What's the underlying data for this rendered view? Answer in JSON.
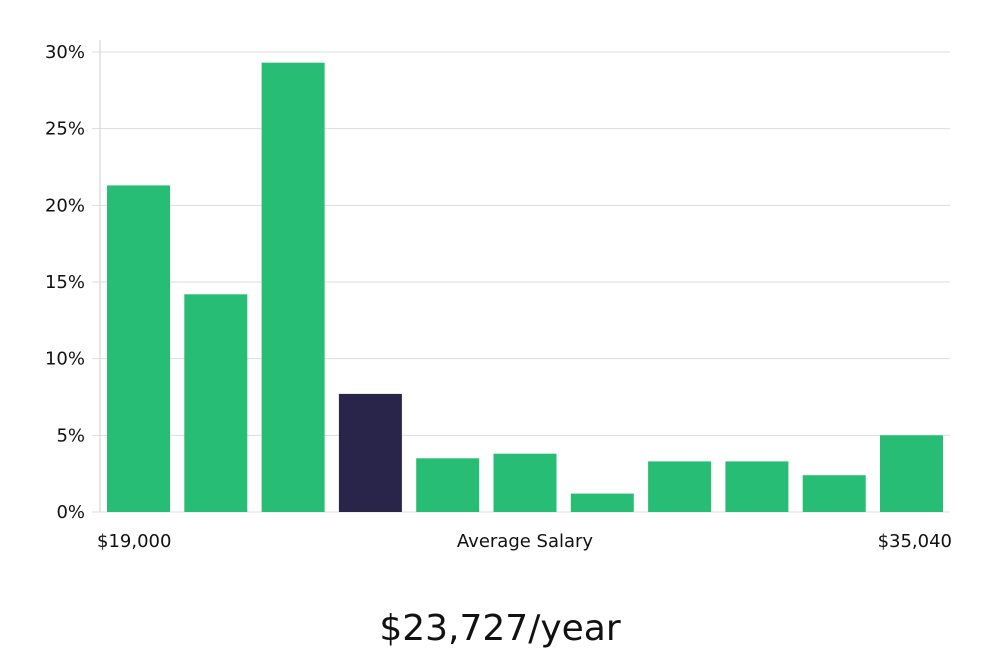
{
  "chart_data": {
    "type": "bar",
    "title": "",
    "xlabel": "Average Salary",
    "ylabel": "",
    "x_min_label": "$19,000",
    "x_max_label": "$35,040",
    "ylim": [
      0,
      31
    ],
    "yticks": [
      0,
      5,
      10,
      15,
      20,
      25,
      30
    ],
    "ytick_labels": [
      "0%",
      "5%",
      "10%",
      "15%",
      "20%",
      "25%",
      "30%"
    ],
    "grid": true,
    "values": [
      21.3,
      14.2,
      29.3,
      7.7,
      3.5,
      3.8,
      1.2,
      3.3,
      3.3,
      2.4,
      5.0
    ],
    "highlight_index": 3,
    "colors": {
      "bar": "#27bd74",
      "highlight": "#29254a",
      "grid": "#dddddd",
      "axis": "#cccccc"
    }
  },
  "summary": {
    "salary_text": "$23,727/year"
  }
}
